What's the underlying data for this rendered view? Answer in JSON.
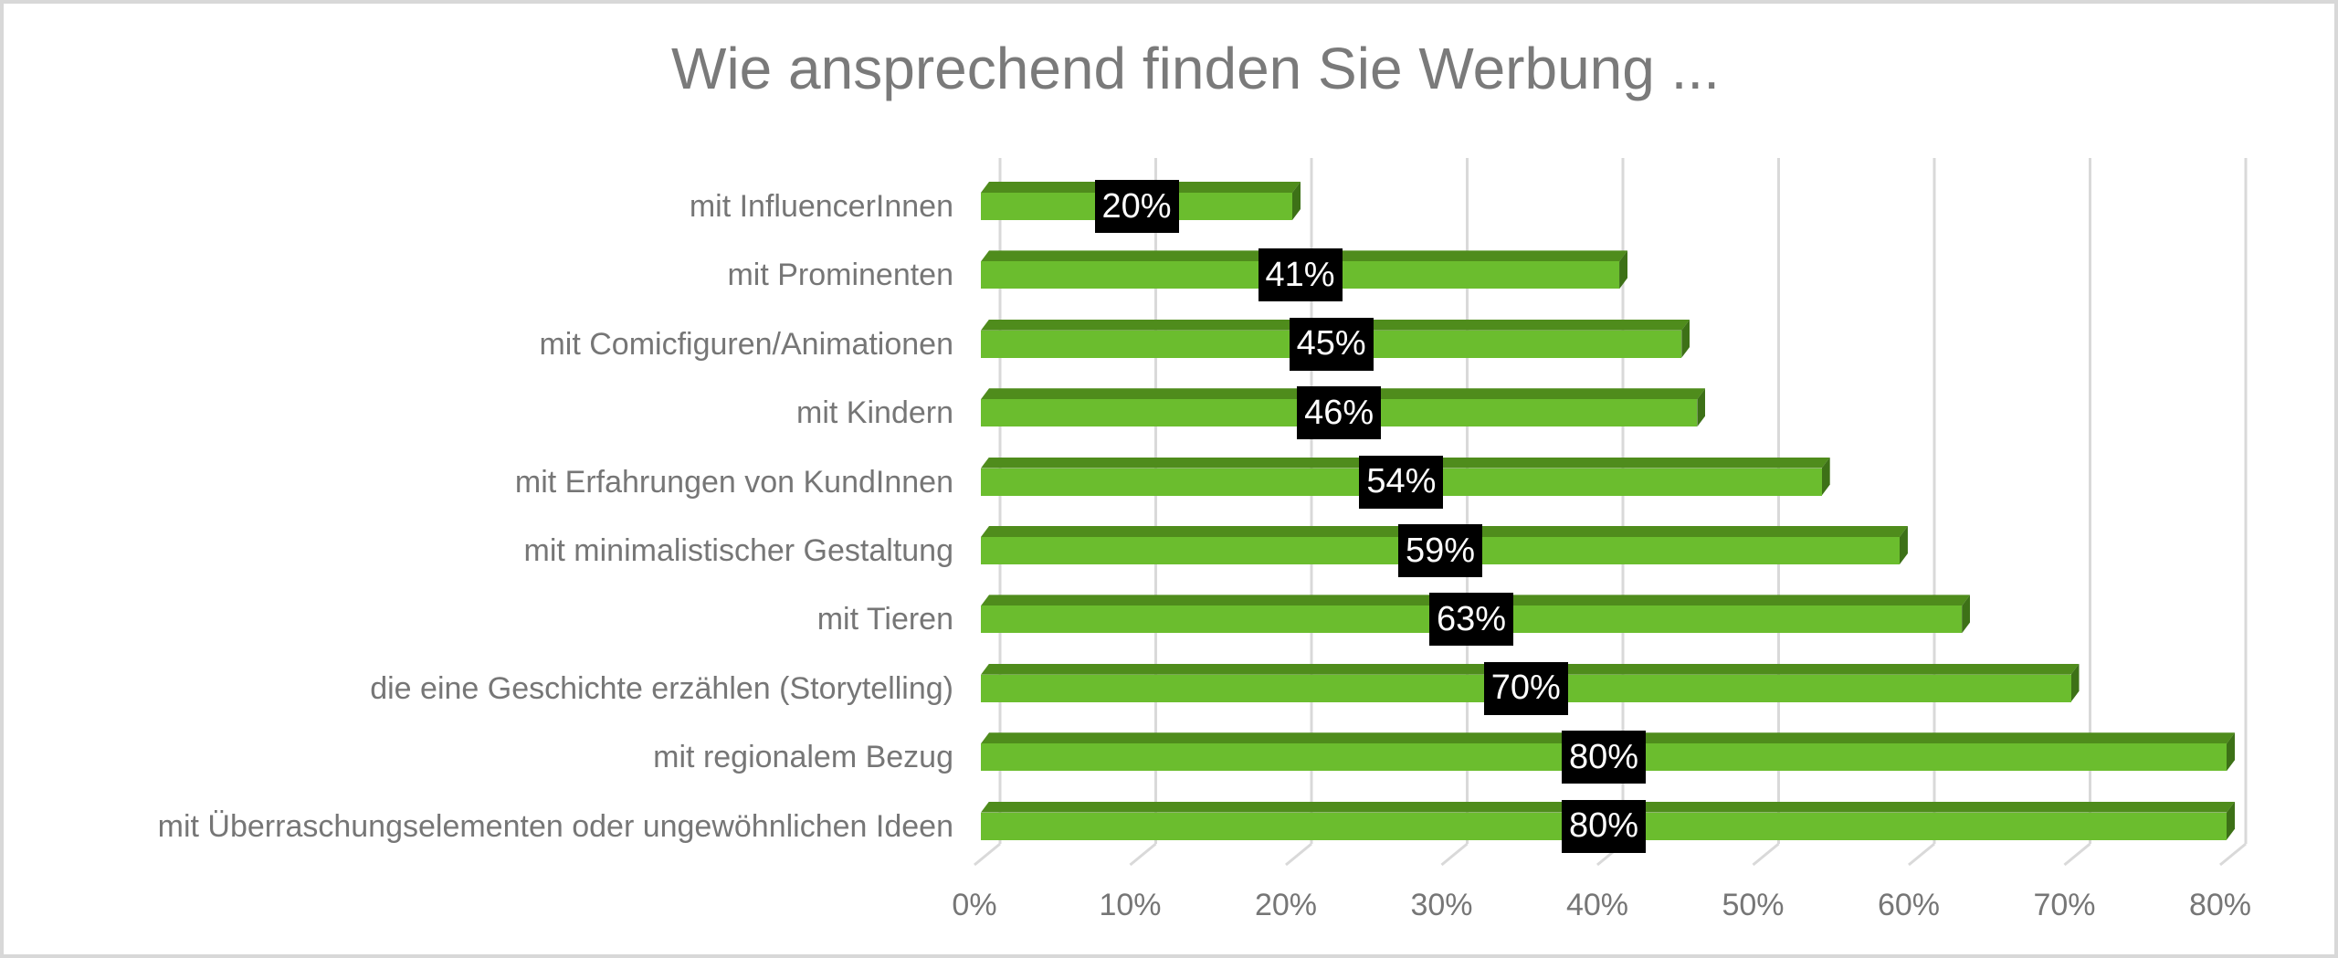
{
  "window": {
    "background_color": "#ffffff",
    "border_color": "#d8d8d8"
  },
  "chart_data": {
    "type": "bar",
    "orientation": "horizontal",
    "style": "3d",
    "title": "Wie ansprechend finden Sie Werbung ...",
    "categories": [
      "mit InfluencerInnen",
      "mit Prominenten",
      "mit Comicfiguren/Animationen",
      "mit Kindern",
      "mit Erfahrungen von KundInnen",
      "mit minimalistischer Gestaltung",
      "mit Tieren",
      "die eine Geschichte erzählen (Storytelling)",
      "mit regionalem Bezug",
      "mit Überraschungselementen oder ungewöhnlichen Ideen"
    ],
    "values": [
      20,
      41,
      45,
      46,
      54,
      59,
      63,
      70,
      80,
      80
    ],
    "value_labels": [
      "20%",
      "41%",
      "45%",
      "46%",
      "54%",
      "59%",
      "63%",
      "70%",
      "80%",
      "80%"
    ],
    "x_ticks": [
      "0%",
      "10%",
      "20%",
      "30%",
      "40%",
      "50%",
      "60%",
      "70%",
      "80%"
    ],
    "xlim": [
      0,
      80
    ],
    "grid": "vertical",
    "legend_position": "none",
    "colors": {
      "bar_front": "#6bbd2e",
      "bar_top": "#4f8c1c",
      "bar_end": "#3d7117",
      "value_label_bg": "#000000",
      "value_label_text": "#ffffff",
      "axis_text": "#767676",
      "title_text": "#7a7a7a",
      "gridline": "#d9d9d9"
    }
  }
}
